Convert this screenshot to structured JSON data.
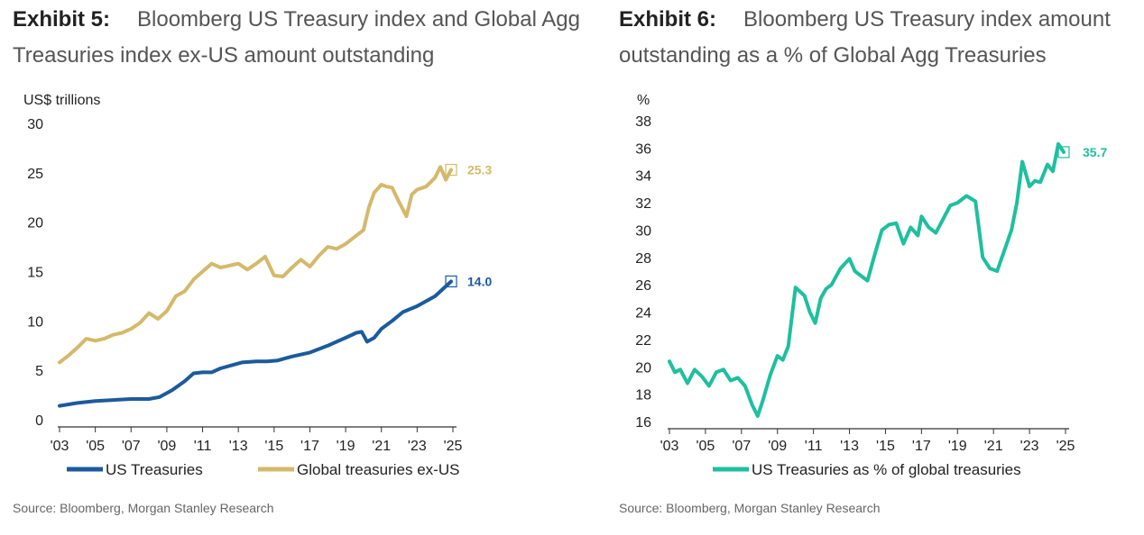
{
  "chart_data": [
    {
      "type": "line",
      "exhibit": "Exhibit 5:",
      "title": "Bloomberg US Treasury index and Global Agg Treasuries index ex-US amount outstanding",
      "ylabel": "US$ trillions",
      "ylim": [
        0,
        30
      ],
      "yticks": [
        "0",
        "5",
        "10",
        "15",
        "20",
        "25",
        "30"
      ],
      "xlim": [
        2003,
        2025
      ],
      "xticks": [
        "'03",
        "'05",
        "'07",
        "'09",
        "'11",
        "'13",
        "'15",
        "'17",
        "'19",
        "'21",
        "'23",
        "'25"
      ],
      "legend_position": "bottom",
      "grid": false,
      "source": "Source: Bloomberg, Morgan Stanley Research",
      "series": [
        {
          "name": "US Treasuries",
          "color": "#1c5a9c",
          "end_label": "14.0",
          "x": [
            2003.0,
            2004.0,
            2005.0,
            2006.0,
            2007.0,
            2008.0,
            2008.6,
            2009.3,
            2010.0,
            2010.5,
            2011.0,
            2011.5,
            2012.0,
            2012.6,
            2013.2,
            2014.0,
            2014.6,
            2015.2,
            2016.0,
            2017.0,
            2018.0,
            2019.0,
            2019.6,
            2019.9,
            2020.2,
            2020.6,
            2021.0,
            2021.6,
            2022.2,
            2023.0,
            2024.0,
            2024.9
          ],
          "values": [
            1.4,
            1.7,
            1.9,
            2.0,
            2.1,
            2.1,
            2.3,
            3.0,
            3.9,
            4.7,
            4.8,
            4.8,
            5.2,
            5.5,
            5.8,
            5.9,
            5.9,
            6.0,
            6.4,
            6.8,
            7.5,
            8.3,
            8.8,
            8.9,
            7.9,
            8.3,
            9.2,
            10.0,
            10.9,
            11.5,
            12.5,
            14.0
          ]
        },
        {
          "name": "Global treasuries ex-US",
          "color": "#d4b96a",
          "end_label": "25.3",
          "x": [
            2003.0,
            2003.5,
            2004.0,
            2004.5,
            2005.0,
            2005.5,
            2006.0,
            2006.5,
            2007.0,
            2007.5,
            2008.0,
            2008.5,
            2009.0,
            2009.5,
            2010.0,
            2010.5,
            2011.0,
            2011.5,
            2012.0,
            2012.5,
            2013.0,
            2013.5,
            2014.0,
            2014.5,
            2015.0,
            2015.5,
            2016.0,
            2016.5,
            2017.0,
            2017.5,
            2018.0,
            2018.5,
            2019.0,
            2019.5,
            2020.0,
            2020.3,
            2020.6,
            2021.0,
            2021.3,
            2021.6,
            2022.0,
            2022.4,
            2022.7,
            2023.0,
            2023.5,
            2024.0,
            2024.3,
            2024.6,
            2024.9
          ],
          "values": [
            5.8,
            6.5,
            7.3,
            8.2,
            8.0,
            8.2,
            8.6,
            8.8,
            9.2,
            9.8,
            10.8,
            10.2,
            11.0,
            12.5,
            13.0,
            14.2,
            15.0,
            15.8,
            15.4,
            15.6,
            15.8,
            15.2,
            15.8,
            16.5,
            14.6,
            14.5,
            15.4,
            16.2,
            15.5,
            16.6,
            17.5,
            17.3,
            17.8,
            18.5,
            19.2,
            21.5,
            23.0,
            23.8,
            23.6,
            23.5,
            22.0,
            20.6,
            22.8,
            23.3,
            23.6,
            24.5,
            25.6,
            24.3,
            25.3
          ]
        }
      ]
    },
    {
      "type": "line",
      "exhibit": "Exhibit 6:",
      "title": "Bloomberg US Treasury index amount outstanding as a % of Global Agg Treasuries",
      "ylabel": "%",
      "ylim": [
        16,
        38
      ],
      "yticks": [
        "16",
        "18",
        "20",
        "22",
        "24",
        "26",
        "28",
        "30",
        "32",
        "34",
        "36",
        "38"
      ],
      "xlim": [
        2003,
        2025
      ],
      "xticks": [
        "'03",
        "'05",
        "'07",
        "'09",
        "'11",
        "'13",
        "'15",
        "'17",
        "'19",
        "'21",
        "'23",
        "'25"
      ],
      "legend_position": "bottom",
      "grid": false,
      "source": "Source: Bloomberg, Morgan Stanley Research",
      "series": [
        {
          "name": "US Treasuries as % of global treasuries",
          "color": "#1fbf9f",
          "end_label": "35.7",
          "x": [
            2003.0,
            2003.3,
            2003.6,
            2004.0,
            2004.4,
            2004.8,
            2005.2,
            2005.6,
            2006.0,
            2006.4,
            2006.8,
            2007.2,
            2007.6,
            2007.9,
            2008.2,
            2008.6,
            2009.0,
            2009.3,
            2009.6,
            2010.0,
            2010.5,
            2010.8,
            2011.1,
            2011.4,
            2011.7,
            2012.0,
            2012.5,
            2013.0,
            2013.3,
            2013.7,
            2014.0,
            2014.4,
            2014.8,
            2015.2,
            2015.6,
            2016.0,
            2016.4,
            2016.8,
            2017.0,
            2017.4,
            2017.8,
            2018.2,
            2018.6,
            2019.0,
            2019.5,
            2020.0,
            2020.4,
            2020.8,
            2021.2,
            2021.6,
            2022.0,
            2022.3,
            2022.6,
            2023.0,
            2023.3,
            2023.6,
            2024.0,
            2024.3,
            2024.6,
            2024.9
          ],
          "values": [
            20.4,
            19.6,
            19.8,
            18.8,
            19.8,
            19.3,
            18.6,
            19.6,
            19.8,
            19.0,
            19.2,
            18.6,
            17.2,
            16.4,
            17.6,
            19.4,
            20.8,
            20.5,
            21.5,
            25.8,
            25.2,
            24.0,
            23.2,
            25.0,
            25.7,
            26.0,
            27.2,
            27.9,
            27.0,
            26.6,
            26.3,
            28.2,
            30.0,
            30.4,
            30.5,
            29.0,
            30.2,
            29.6,
            31.0,
            30.2,
            29.8,
            30.8,
            31.8,
            32.0,
            32.5,
            32.1,
            28.0,
            27.2,
            27.0,
            28.5,
            30.0,
            32.0,
            35.0,
            33.2,
            33.6,
            33.5,
            34.8,
            34.3,
            36.3,
            35.7
          ]
        }
      ]
    }
  ]
}
